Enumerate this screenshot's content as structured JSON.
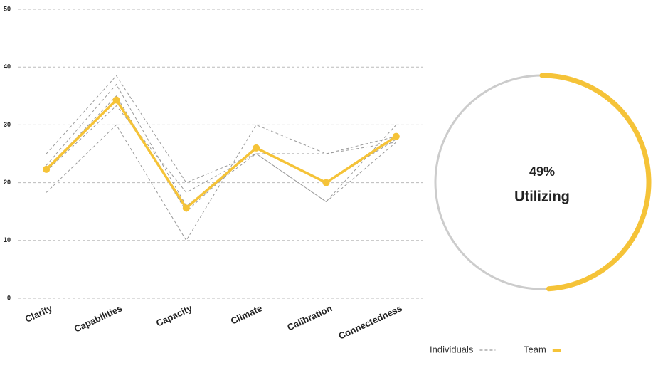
{
  "chart_data": [
    {
      "type": "line",
      "categories": [
        "Clarity",
        "Capabilities",
        "Capacity",
        "Climate",
        "Calibration",
        "Connectedness"
      ],
      "ylim": [
        0,
        50
      ],
      "yticks": [
        0,
        10,
        20,
        30,
        40,
        50
      ],
      "grid": true,
      "series": [
        {
          "name": "Individuals",
          "color": "#9a9a9a",
          "dashed": true,
          "lines": [
            [
              25,
              38.5,
              20,
              25,
              25,
              28
            ],
            [
              18.3,
              30,
              10,
              30,
              25,
              27
            ],
            [
              23,
              37,
              16,
              25,
              16.7,
              27
            ],
            [
              22,
              33.3,
              18.3,
              25,
              16.7,
              30
            ],
            [
              22.3,
              35,
              15,
              26,
              20,
              27.5
            ]
          ]
        },
        {
          "name": "Team",
          "color": "#f5c338",
          "dashed": false,
          "values": [
            22.3,
            34.3,
            15.6,
            26,
            20,
            28
          ]
        }
      ]
    },
    {
      "type": "donut",
      "values": [
        49
      ],
      "value_labels": [
        "49%"
      ],
      "categories": [
        "Utilizing"
      ],
      "color": "#f5c338",
      "track_color": "#cccccc"
    }
  ]
}
